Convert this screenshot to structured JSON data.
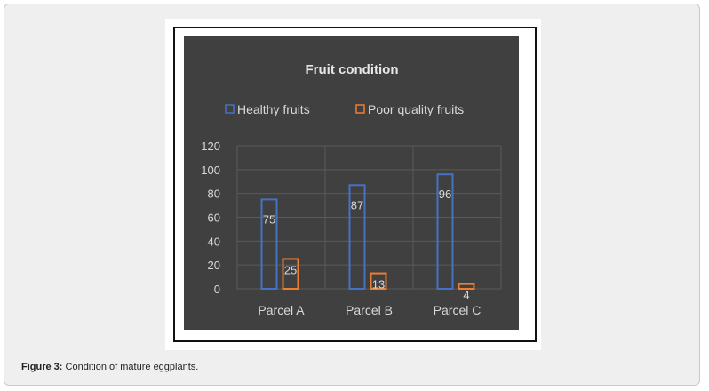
{
  "figure": {
    "caption_label": "Figure 3:",
    "caption_text": " Condition of mature eggplants."
  },
  "chart_data": {
    "type": "bar",
    "title": "Fruit condition",
    "categories": [
      "Parcel A",
      "Parcel B",
      "Parcel C"
    ],
    "series": [
      {
        "name": "Healthy fruits",
        "values": [
          75,
          87,
          96
        ],
        "color": "#4472c4"
      },
      {
        "name": "Poor quality fruits",
        "values": [
          25,
          13,
          4
        ],
        "color": "#ed7d31"
      }
    ],
    "yticks": [
      "0",
      "20",
      "40",
      "60",
      "80",
      "100",
      "120"
    ],
    "ylim": [
      0,
      120
    ],
    "legend_position": "top",
    "grid": true,
    "background": "#404040"
  }
}
